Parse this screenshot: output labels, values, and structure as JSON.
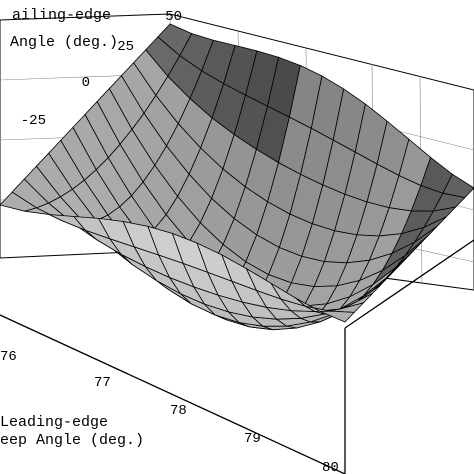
{
  "chart_data": {
    "type": "surface",
    "x_axis": {
      "label_lines": [
        "Leading-edge",
        "Sweep Angle (deg.)"
      ],
      "visible_label_lines": [
        "Leading-edge",
        "eep Angle (deg.)"
      ],
      "ticks": [
        "76",
        "77",
        "78",
        "79",
        "80"
      ],
      "range": [
        75,
        80
      ]
    },
    "y_axis": {
      "label_lines": [
        "Trailing-edge",
        "Angle (deg.)"
      ],
      "visible_label_lines": [
        "ailing-edge",
        "Angle (deg.)"
      ],
      "ticks": [
        "50",
        "25",
        "0",
        "-25"
      ],
      "range": [
        -50,
        50
      ]
    },
    "grid_resolution": 14,
    "surface_shading": "gray faceted, darker at the saddle ends (top rear and front right)",
    "grid": true,
    "legend": "none"
  }
}
